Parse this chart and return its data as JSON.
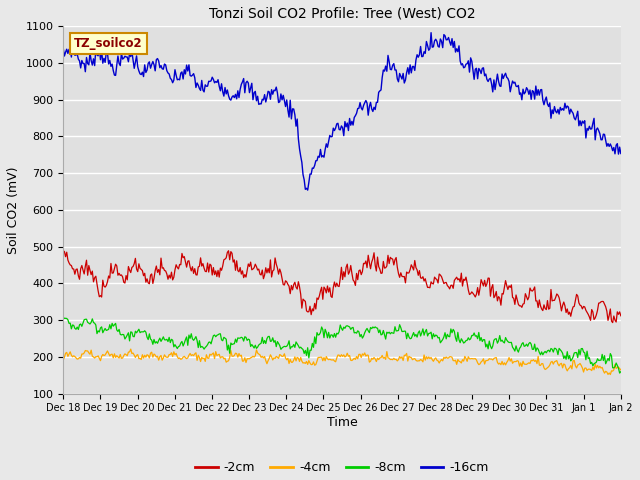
{
  "title": "Tonzi Soil CO2 Profile: Tree (West) CO2",
  "ylabel": "Soil CO2 (mV)",
  "xlabel": "Time",
  "legend_label": "TZ_soilco2",
  "series_labels": [
    "-2cm",
    "-4cm",
    "-8cm",
    "-16cm"
  ],
  "series_colors": [
    "#cc0000",
    "#ffaa00",
    "#00cc00",
    "#0000cc"
  ],
  "ylim": [
    100,
    1100
  ],
  "yticks": [
    100,
    200,
    300,
    400,
    500,
    600,
    700,
    800,
    900,
    1000,
    1100
  ],
  "fig_bg_color": "#e8e8e8",
  "axes_bg_color": "#e0e0e0",
  "grid_color": "#ffffff",
  "n_points": 480,
  "n_days": 15
}
